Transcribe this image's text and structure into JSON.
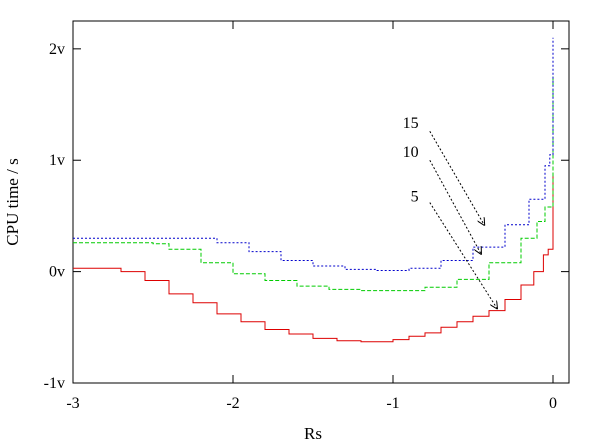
{
  "chart_data": {
    "type": "line",
    "title": "",
    "xlabel": "Rs",
    "ylabel": "CPU time / s",
    "xlim": [
      -3,
      0.1
    ],
    "ylim": [
      -1,
      2.25
    ],
    "x_ticks": [
      {
        "value": -3,
        "label": "-3"
      },
      {
        "value": -2,
        "label": "-2"
      },
      {
        "value": -1,
        "label": "-1"
      },
      {
        "value": 0,
        "label": "0"
      }
    ],
    "y_ticks": [
      {
        "value": -1,
        "label": "-1v"
      },
      {
        "value": 0,
        "label": "0v"
      },
      {
        "value": 1,
        "label": "1v"
      },
      {
        "value": 2,
        "label": "2v"
      }
    ],
    "grid": false,
    "legend": "none",
    "series": [
      {
        "color": "#dd0000",
        "dash": "",
        "x": [
          -3.0,
          -2.7,
          -2.55,
          -2.4,
          -2.25,
          -2.1,
          -1.95,
          -1.8,
          -1.65,
          -1.5,
          -1.35,
          -1.2,
          -1.1,
          -1.0,
          -0.9,
          -0.8,
          -0.7,
          -0.6,
          -0.5,
          -0.4,
          -0.3,
          -0.2,
          -0.12,
          -0.06,
          -0.03,
          0.0
        ],
        "y": [
          0.03,
          0.0,
          -0.08,
          -0.2,
          -0.28,
          -0.38,
          -0.45,
          -0.52,
          -0.56,
          -0.6,
          -0.62,
          -0.63,
          -0.63,
          -0.61,
          -0.58,
          -0.55,
          -0.5,
          -0.45,
          -0.4,
          -0.35,
          -0.25,
          -0.12,
          0.0,
          0.15,
          0.2,
          0.87
        ]
      },
      {
        "color": "#00cc00",
        "dash": "4,2",
        "x": [
          -3.0,
          -2.5,
          -2.4,
          -2.2,
          -2.0,
          -1.8,
          -1.6,
          -1.4,
          -1.2,
          -1.0,
          -0.8,
          -0.6,
          -0.4,
          -0.2,
          -0.1,
          -0.05,
          0.0
        ],
        "y": [
          0.26,
          0.25,
          0.2,
          0.08,
          -0.02,
          -0.08,
          -0.13,
          -0.16,
          -0.17,
          -0.17,
          -0.14,
          -0.07,
          0.08,
          0.3,
          0.45,
          0.58,
          1.78
        ]
      },
      {
        "color": "#0000cc",
        "dash": "2,2",
        "x": [
          -3.0,
          -2.3,
          -2.1,
          -1.9,
          -1.7,
          -1.5,
          -1.3,
          -1.1,
          -0.9,
          -0.7,
          -0.5,
          -0.3,
          -0.15,
          -0.05,
          -0.02,
          0.0
        ],
        "y": [
          0.3,
          0.3,
          0.26,
          0.18,
          0.1,
          0.05,
          0.02,
          0.01,
          0.03,
          0.1,
          0.22,
          0.42,
          0.65,
          0.95,
          1.05,
          2.1
        ]
      }
    ],
    "annotations": [
      {
        "text": "15",
        "label_x": -0.84,
        "label_y": 1.29,
        "arrow_from_x": -0.77,
        "arrow_from_y": 1.26,
        "arrow_to_x": -0.43,
        "arrow_to_y": 0.42
      },
      {
        "text": "10",
        "label_x": -0.84,
        "label_y": 1.03,
        "arrow_from_x": -0.77,
        "arrow_from_y": 1.0,
        "arrow_to_x": -0.45,
        "arrow_to_y": 0.16
      },
      {
        "text": "5",
        "label_x": -0.84,
        "label_y": 0.63,
        "arrow_from_x": -0.77,
        "arrow_from_y": 0.62,
        "arrow_to_x": -0.35,
        "arrow_to_y": -0.33
      }
    ]
  }
}
